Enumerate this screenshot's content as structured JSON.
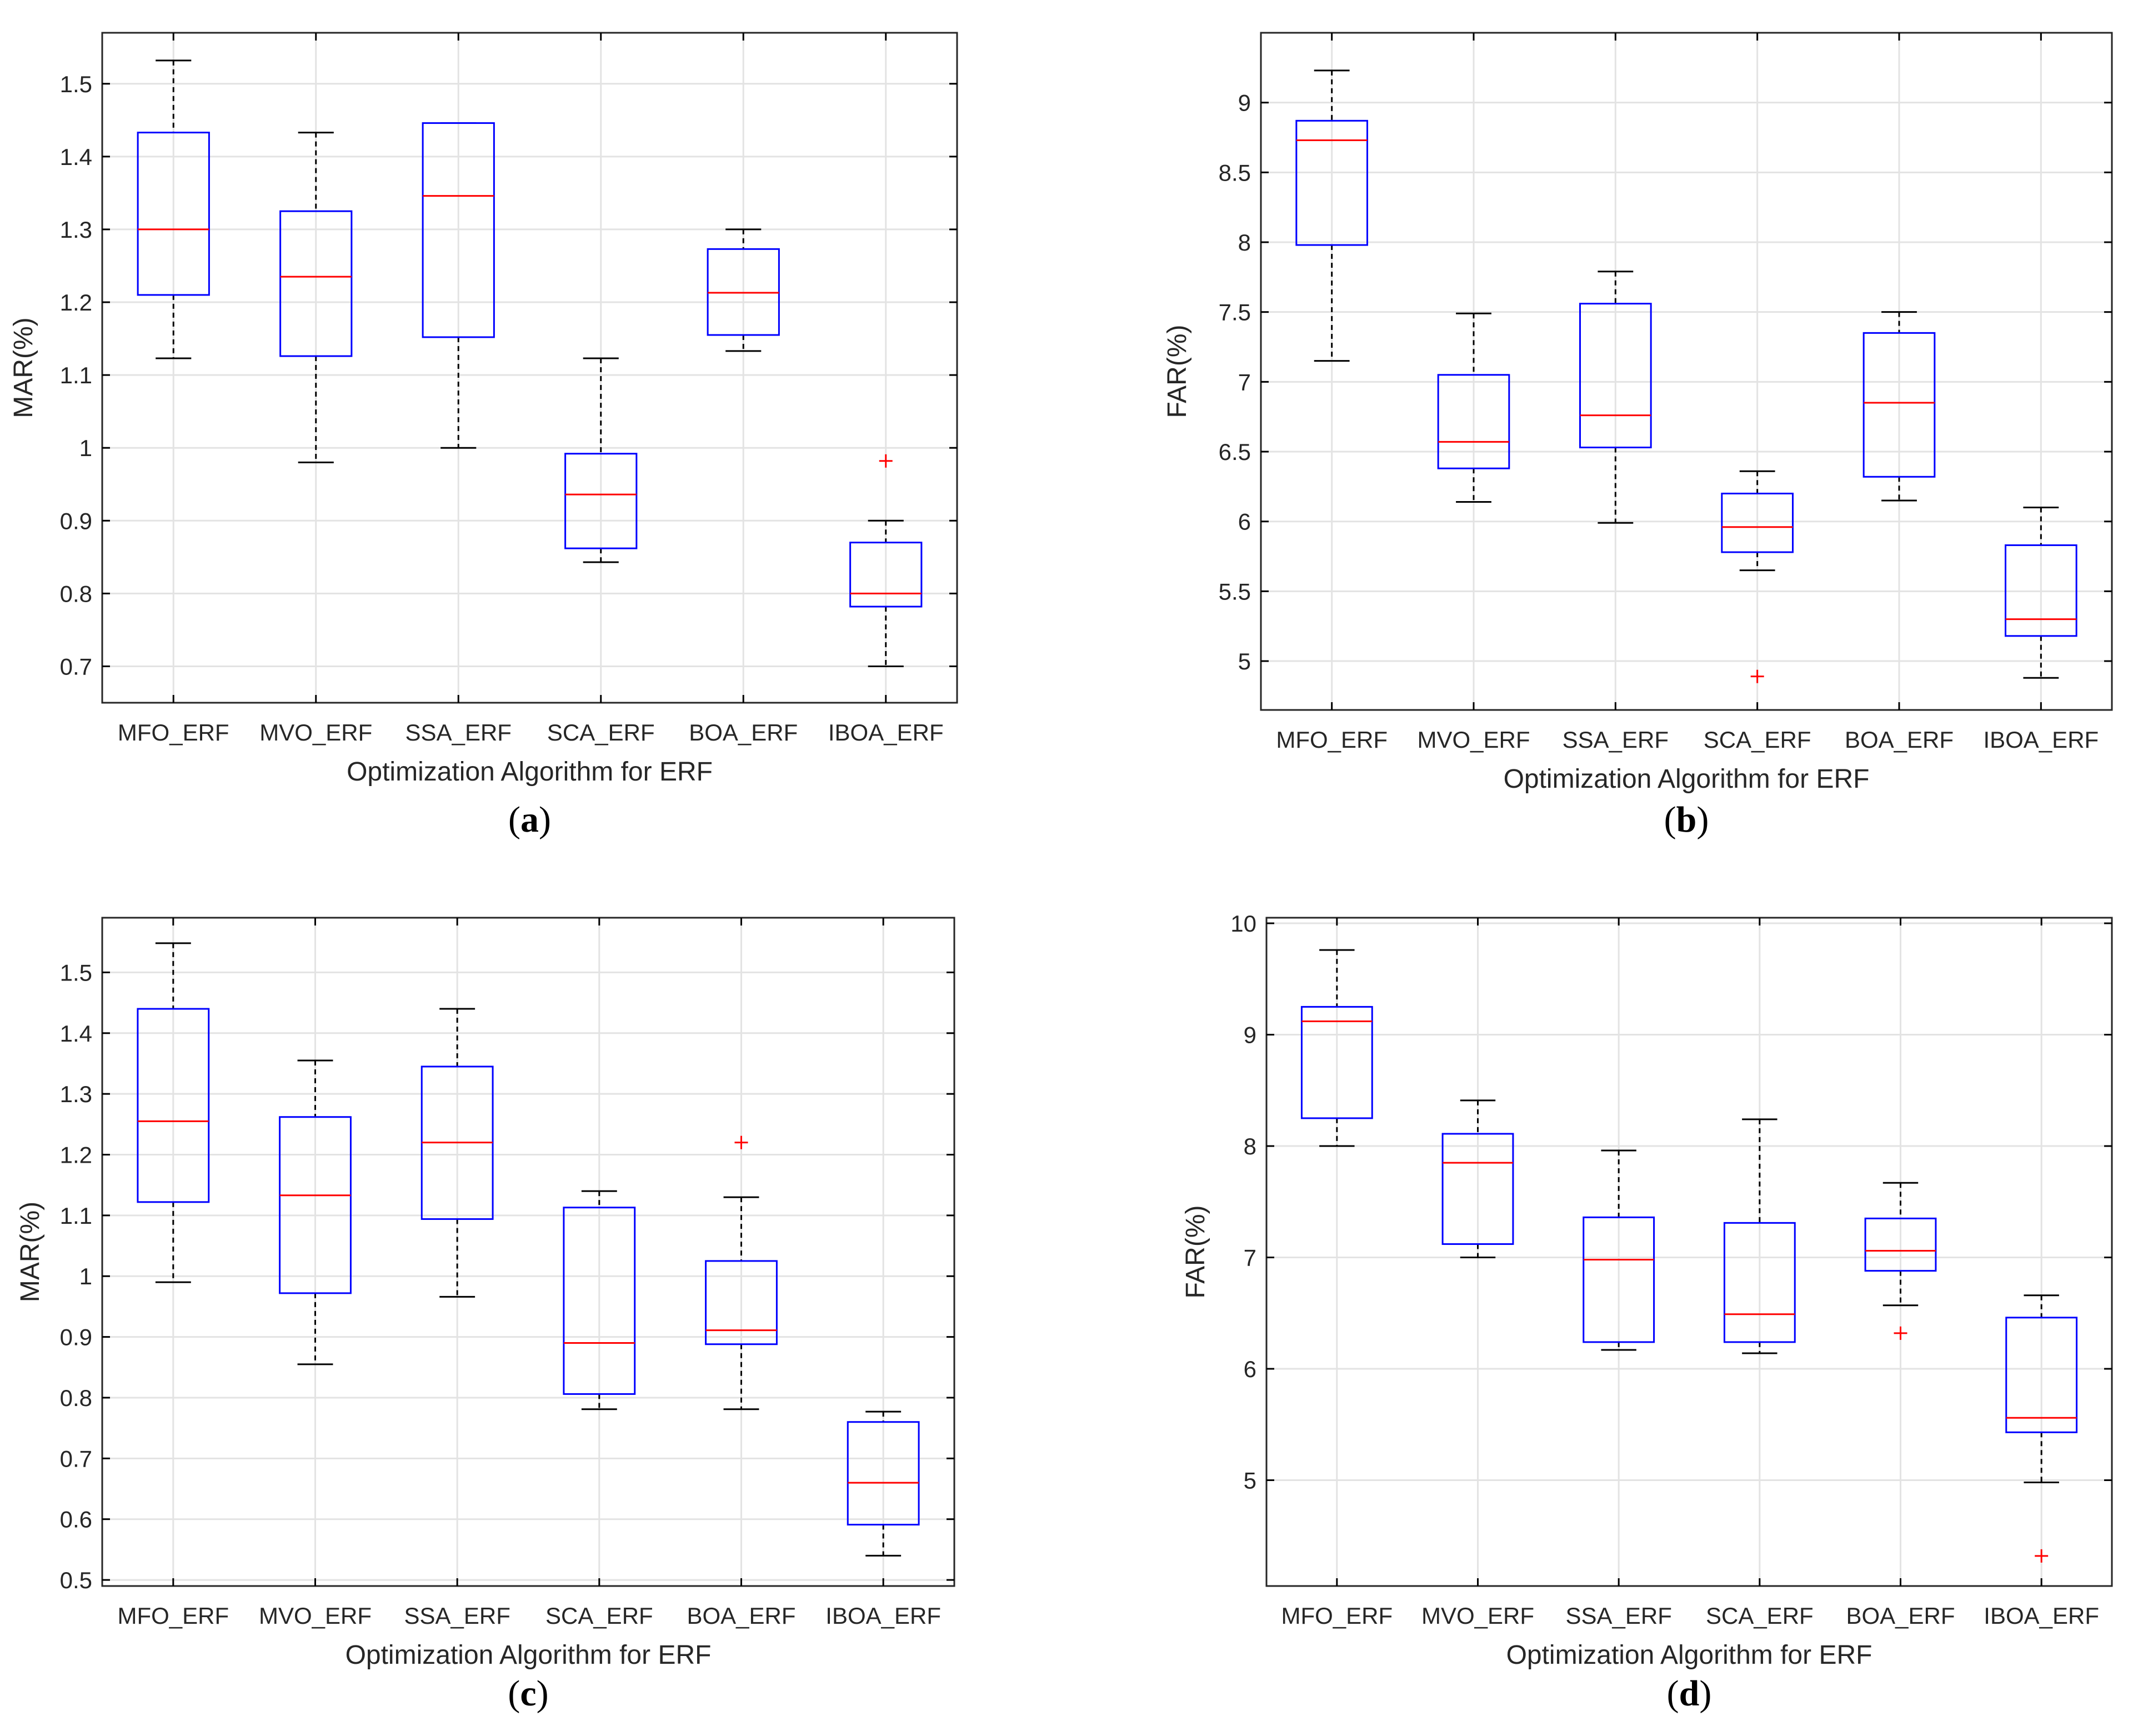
{
  "chart_data": [
    {
      "id": "a",
      "panel_label": "a",
      "type": "box",
      "xlabel": "Optimization Algorithm for ERF",
      "ylabel": "MAR(%)",
      "ylim": [
        0.65,
        1.57
      ],
      "yticks": [
        0.7,
        0.8,
        0.9,
        1,
        1.1,
        1.2,
        1.3,
        1.4,
        1.5
      ],
      "ytick_labels": [
        "0.7",
        "0.8",
        "0.9",
        "1",
        "1.1",
        "1.2",
        "1.3",
        "1.4",
        "1.5"
      ],
      "grid": true,
      "categories": [
        "MFO_ERF",
        "MVO_ERF",
        "SSA_ERF",
        "SCA_ERF",
        "BOA_ERF",
        "IBOA_ERF"
      ],
      "boxes": [
        {
          "category": "MFO_ERF",
          "min": 1.123,
          "q1": 1.21,
          "median": 1.3,
          "q3": 1.433,
          "max": 1.532,
          "outliers": []
        },
        {
          "category": "MVO_ERF",
          "min": 0.98,
          "q1": 1.126,
          "median": 1.235,
          "q3": 1.325,
          "max": 1.433,
          "outliers": []
        },
        {
          "category": "SSA_ERF",
          "min": 1.0,
          "q1": 1.152,
          "median": 1.346,
          "q3": 1.446,
          "max": 1.446,
          "outliers": []
        },
        {
          "category": "SCA_ERF",
          "min": 0.843,
          "q1": 0.862,
          "median": 0.936,
          "q3": 0.992,
          "max": 1.123,
          "outliers": []
        },
        {
          "category": "BOA_ERF",
          "min": 1.133,
          "q1": 1.155,
          "median": 1.213,
          "q3": 1.273,
          "max": 1.3,
          "outliers": []
        },
        {
          "category": "IBOA_ERF",
          "min": 0.7,
          "q1": 0.782,
          "median": 0.8,
          "q3": 0.87,
          "max": 0.9,
          "outliers": [
            0.982
          ]
        }
      ]
    },
    {
      "id": "b",
      "panel_label": "b",
      "type": "box",
      "xlabel": "Optimization Algorithm for ERF",
      "ylabel": "FAR(%)",
      "ylim": [
        4.65,
        9.5
      ],
      "yticks": [
        5,
        5.5,
        6,
        6.5,
        7,
        7.5,
        8,
        8.5,
        9
      ],
      "ytick_labels": [
        "5",
        "5.5",
        "6",
        "6.5",
        "7",
        "7.5",
        "8",
        "8.5",
        "9"
      ],
      "grid": true,
      "categories": [
        "MFO_ERF",
        "MVO_ERF",
        "SSA_ERF",
        "SCA_ERF",
        "BOA_ERF",
        "IBOA_ERF"
      ],
      "boxes": [
        {
          "category": "MFO_ERF",
          "min": 7.15,
          "q1": 7.98,
          "median": 8.73,
          "q3": 8.87,
          "max": 9.23,
          "outliers": []
        },
        {
          "category": "MVO_ERF",
          "min": 6.14,
          "q1": 6.38,
          "median": 6.57,
          "q3": 7.05,
          "max": 7.49,
          "outliers": []
        },
        {
          "category": "SSA_ERF",
          "min": 5.99,
          "q1": 6.53,
          "median": 6.76,
          "q3": 7.56,
          "max": 7.79,
          "outliers": []
        },
        {
          "category": "SCA_ERF",
          "min": 5.65,
          "q1": 5.78,
          "median": 5.96,
          "q3": 6.2,
          "max": 6.36,
          "outliers": [
            4.89
          ]
        },
        {
          "category": "BOA_ERF",
          "min": 6.15,
          "q1": 6.32,
          "median": 6.85,
          "q3": 7.35,
          "max": 7.5,
          "outliers": []
        },
        {
          "category": "IBOA_ERF",
          "min": 4.88,
          "q1": 5.18,
          "median": 5.3,
          "q3": 5.83,
          "max": 6.1,
          "outliers": []
        }
      ]
    },
    {
      "id": "c",
      "panel_label": "c",
      "type": "box",
      "xlabel": "Optimization Algorithm for ERF",
      "ylabel": "MAR(%)",
      "ylim": [
        0.49,
        1.59
      ],
      "yticks": [
        0.5,
        0.6,
        0.7,
        0.8,
        0.9,
        1,
        1.1,
        1.2,
        1.3,
        1.4,
        1.5
      ],
      "ytick_labels": [
        "0.5",
        "0.6",
        "0.7",
        "0.8",
        "0.9",
        "1",
        "1.1",
        "1.2",
        "1.3",
        "1.4",
        "1.5"
      ],
      "grid": true,
      "categories": [
        "MFO_ERF",
        "MVO_ERF",
        "SSA_ERF",
        "SCA_ERF",
        "BOA_ERF",
        "IBOA_ERF"
      ],
      "boxes": [
        {
          "category": "MFO_ERF",
          "min": 0.99,
          "q1": 1.122,
          "median": 1.255,
          "q3": 1.44,
          "max": 1.548,
          "outliers": []
        },
        {
          "category": "MVO_ERF",
          "min": 0.855,
          "q1": 0.972,
          "median": 1.133,
          "q3": 1.262,
          "max": 1.355,
          "outliers": []
        },
        {
          "category": "SSA_ERF",
          "min": 0.966,
          "q1": 1.094,
          "median": 1.22,
          "q3": 1.345,
          "max": 1.44,
          "outliers": []
        },
        {
          "category": "SCA_ERF",
          "min": 0.781,
          "q1": 0.806,
          "median": 0.89,
          "q3": 1.113,
          "max": 1.14,
          "outliers": []
        },
        {
          "category": "BOA_ERF",
          "min": 0.781,
          "q1": 0.888,
          "median": 0.911,
          "q3": 1.025,
          "max": 1.13,
          "outliers": [
            1.22
          ]
        },
        {
          "category": "IBOA_ERF",
          "min": 0.54,
          "q1": 0.591,
          "median": 0.66,
          "q3": 0.76,
          "max": 0.777,
          "outliers": []
        }
      ]
    },
    {
      "id": "d",
      "panel_label": "d",
      "type": "box",
      "xlabel": "Optimization Algorithm for ERF",
      "ylabel": "FAR(%)",
      "ylim": [
        4.05,
        10.05
      ],
      "yticks": [
        5,
        6,
        7,
        8,
        9,
        10
      ],
      "ytick_labels": [
        "5",
        "6",
        "7",
        "8",
        "9",
        "10"
      ],
      "grid": true,
      "categories": [
        "MFO_ERF",
        "MVO_ERF",
        "SSA_ERF",
        "SCA_ERF",
        "BOA_ERF",
        "IBOA_ERF"
      ],
      "boxes": [
        {
          "category": "MFO_ERF",
          "min": 8.0,
          "q1": 8.25,
          "median": 9.12,
          "q3": 9.25,
          "max": 9.76,
          "outliers": []
        },
        {
          "category": "MVO_ERF",
          "min": 7.0,
          "q1": 7.12,
          "median": 7.85,
          "q3": 8.11,
          "max": 8.41,
          "outliers": []
        },
        {
          "category": "SSA_ERF",
          "min": 6.17,
          "q1": 6.24,
          "median": 6.98,
          "q3": 7.36,
          "max": 7.96,
          "outliers": []
        },
        {
          "category": "SCA_ERF",
          "min": 6.14,
          "q1": 6.24,
          "median": 6.49,
          "q3": 7.31,
          "max": 8.24,
          "outliers": []
        },
        {
          "category": "BOA_ERF",
          "min": 6.57,
          "q1": 6.88,
          "median": 7.06,
          "q3": 7.35,
          "max": 7.67,
          "outliers": [
            6.32
          ]
        },
        {
          "category": "IBOA_ERF",
          "min": 4.98,
          "q1": 5.43,
          "median": 5.56,
          "q3": 6.46,
          "max": 6.66,
          "outliers": [
            4.32
          ]
        }
      ]
    }
  ]
}
